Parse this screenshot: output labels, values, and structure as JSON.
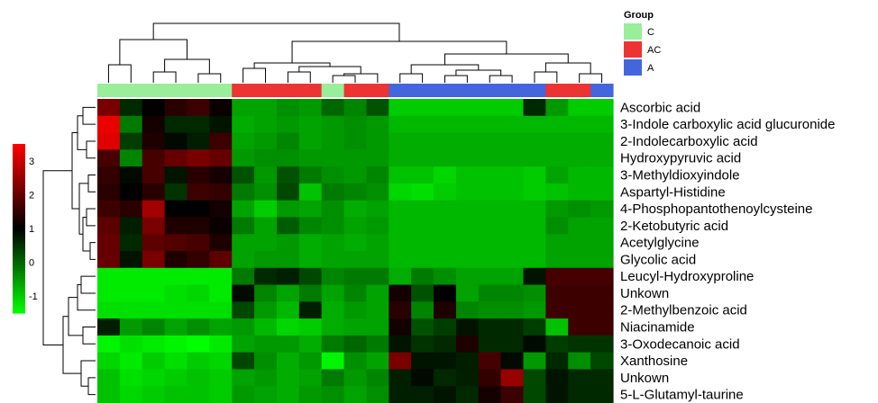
{
  "chart_data": {
    "type": "heatmap",
    "title": "",
    "rows": [
      "Ascorbic acid",
      "3-Indole carboxylic acid glucuronide",
      "2-Indolecarboxylic acid",
      "Hydroxypyruvic acid",
      "3-Methyldioxyindole",
      "Aspartyl-Histidine",
      "4-Phosphopantothenoylcysteine",
      "2-Ketobutyric acid",
      "Acetylglycine",
      "Glycolic acid",
      "Leucyl-Hydroxyproline",
      "Unkown",
      "2-Methylbenzoic acid",
      "Niacinamide",
      "3-Oxodecanoic acid",
      "Xanthosine",
      "Unkown",
      "5-L-Glutamyl-taurine"
    ],
    "column_groups": [
      "C",
      "C",
      "C",
      "C",
      "C",
      "C",
      "AC",
      "AC",
      "AC",
      "AC",
      "C",
      "AC",
      "AC",
      "A",
      "A",
      "A",
      "A",
      "A",
      "A",
      "A",
      "AC",
      "AC",
      "A"
    ],
    "values": [
      [
        2.2,
        0.6,
        1.0,
        1.4,
        1.6,
        1.1,
        -0.6,
        -0.6,
        -0.4,
        -0.5,
        0.0,
        -0.3,
        0.2,
        -1.0,
        -1.0,
        -1.0,
        -1.0,
        -1.0,
        -1.0,
        0.6,
        -0.5,
        -1.0,
        -1.0
      ],
      [
        3.3,
        -0.2,
        1.2,
        0.6,
        0.6,
        0.8,
        -0.7,
        -0.6,
        -0.5,
        -0.6,
        -0.5,
        -0.4,
        -0.5,
        -0.8,
        -0.8,
        -0.8,
        -0.8,
        -0.8,
        -0.8,
        -0.8,
        -0.8,
        -0.8,
        -0.8
      ],
      [
        3.2,
        0.4,
        1.3,
        0.9,
        0.7,
        1.6,
        -0.6,
        -0.5,
        -0.3,
        -0.6,
        -0.5,
        -0.4,
        -0.5,
        -0.7,
        -0.7,
        -0.7,
        -0.7,
        -0.7,
        -0.7,
        -0.7,
        -0.7,
        -0.7,
        -0.7
      ],
      [
        1.7,
        -0.3,
        1.7,
        2.0,
        2.2,
        2.0,
        -0.5,
        -0.4,
        -0.4,
        -0.5,
        -0.5,
        -0.5,
        -0.5,
        -0.7,
        -0.7,
        -0.7,
        -0.7,
        -0.7,
        -0.7,
        -0.7,
        -0.7,
        -0.7,
        -0.7
      ],
      [
        1.5,
        0.9,
        1.7,
        0.8,
        1.4,
        1.2,
        0.2,
        -0.5,
        0.2,
        -0.2,
        -0.4,
        -0.5,
        -0.3,
        -0.9,
        -0.9,
        -1.1,
        -0.9,
        -0.9,
        -0.9,
        -1.0,
        -0.6,
        -0.8,
        -0.8
      ],
      [
        1.4,
        1.0,
        1.4,
        0.5,
        1.6,
        1.5,
        -0.2,
        -0.4,
        0.3,
        -0.9,
        -0.2,
        -0.3,
        -0.4,
        -1.1,
        -1.2,
        -1.0,
        -0.9,
        -0.9,
        -0.9,
        -1.0,
        -0.9,
        -0.8,
        -0.8
      ],
      [
        1.6,
        1.4,
        2.6,
        1.0,
        1.0,
        1.2,
        -0.6,
        -1.0,
        -0.5,
        -0.6,
        -0.4,
        -0.7,
        -0.6,
        -0.8,
        -0.8,
        -0.8,
        -0.8,
        -0.8,
        -0.8,
        -0.8,
        -0.5,
        -0.4,
        -0.5
      ],
      [
        1.9,
        0.7,
        2.2,
        1.3,
        1.3,
        1.1,
        -0.2,
        -0.6,
        0.1,
        -0.3,
        -0.4,
        -0.6,
        -0.5,
        -0.8,
        -0.8,
        -0.8,
        -0.8,
        -0.8,
        -0.8,
        -0.8,
        -0.4,
        -0.6,
        -0.6
      ],
      [
        2.0,
        0.6,
        1.9,
        1.8,
        1.7,
        1.3,
        -0.6,
        -0.6,
        -0.5,
        -0.7,
        -0.6,
        -0.7,
        -0.6,
        -0.8,
        -0.8,
        -0.8,
        -0.8,
        -0.8,
        -0.8,
        -0.8,
        -0.6,
        -0.6,
        -0.6
      ],
      [
        2.0,
        0.8,
        2.2,
        1.3,
        1.5,
        1.9,
        -0.6,
        -0.5,
        -0.5,
        -0.7,
        -0.6,
        -0.6,
        -0.6,
        -0.8,
        -0.8,
        -0.8,
        -0.8,
        -0.8,
        -0.8,
        -0.8,
        -0.6,
        -0.6,
        -0.6
      ],
      [
        -1.3,
        -1.3,
        -1.3,
        -1.3,
        -1.3,
        -1.3,
        -0.2,
        0.6,
        0.7,
        0.3,
        -0.3,
        -0.2,
        -0.2,
        -0.7,
        -0.2,
        -0.4,
        -0.6,
        -0.6,
        -0.6,
        0.8,
        1.7,
        1.7,
        1.7
      ],
      [
        -1.3,
        -1.3,
        -1.3,
        -1.2,
        -1.1,
        -1.3,
        0.9,
        -0.3,
        -0.6,
        -0.2,
        -0.6,
        -0.3,
        -0.6,
        1.2,
        0.2,
        1.0,
        -0.6,
        -0.3,
        -0.3,
        -0.4,
        1.6,
        1.6,
        1.6
      ],
      [
        -1.2,
        -1.2,
        -1.2,
        -1.2,
        -1.2,
        -1.2,
        0.3,
        -0.5,
        -0.8,
        0.7,
        -0.7,
        -0.5,
        -0.6,
        1.4,
        -0.3,
        1.3,
        -0.3,
        -0.4,
        -0.4,
        -0.5,
        1.6,
        1.6,
        1.6
      ],
      [
        0.7,
        -0.5,
        -0.3,
        -0.6,
        -0.4,
        -0.6,
        -0.5,
        -0.8,
        -1.1,
        -1.0,
        -0.7,
        -0.6,
        -0.6,
        1.2,
        0.2,
        0.4,
        0.8,
        0.6,
        0.6,
        0.4,
        -0.9,
        1.6,
        1.6
      ],
      [
        -1.4,
        -1.2,
        -1.3,
        -1.4,
        -1.5,
        -1.3,
        -0.6,
        -0.5,
        -0.5,
        -0.7,
        -0.2,
        0.0,
        -0.2,
        0.8,
        0.5,
        0.6,
        1.3,
        0.6,
        0.6,
        0.9,
        0.4,
        0.5,
        0.5
      ],
      [
        -1.1,
        -1.3,
        -1.0,
        -1.2,
        -1.0,
        -1.1,
        0.3,
        -0.4,
        -0.7,
        -0.5,
        -1.4,
        -0.4,
        -0.6,
        2.2,
        0.8,
        0.8,
        0.7,
        1.7,
        0.9,
        -0.5,
        0.6,
        -0.4,
        0.3
      ],
      [
        -0.9,
        -1.2,
        -1.1,
        -1.0,
        -0.9,
        -1.0,
        -0.6,
        -0.5,
        -0.7,
        -0.6,
        -0.2,
        -0.5,
        -0.3,
        0.7,
        0.9,
        0.6,
        0.7,
        1.5,
        2.5,
        0.3,
        0.8,
        0.6,
        0.6
      ],
      [
        -0.9,
        -1.1,
        -1.0,
        -0.9,
        -0.9,
        -1.0,
        -0.5,
        -0.6,
        -0.7,
        -0.5,
        -0.4,
        -0.6,
        -0.4,
        0.7,
        0.7,
        0.8,
        0.6,
        1.2,
        1.6,
        0.3,
        0.8,
        0.6,
        0.6
      ]
    ],
    "color_scale": {
      "min_color": "#00ff00",
      "mid_color": "#000000",
      "max_color": "#ff0000",
      "range": [
        -1.5,
        3.5
      ]
    },
    "colorbar_ticks": [
      "3",
      "2",
      "1",
      "0",
      "-1"
    ],
    "colorbar_tick_values": [
      3,
      2,
      1,
      0,
      -1
    ],
    "legend": {
      "title": "Group",
      "items": [
        {
          "label": "C",
          "color": "#99ee99"
        },
        {
          "label": "AC",
          "color": "#ee3333"
        },
        {
          "label": "A",
          "color": "#4466dd"
        }
      ],
      "placement": "top-right"
    },
    "row_dendrogram": true,
    "column_dendrogram": true
  }
}
